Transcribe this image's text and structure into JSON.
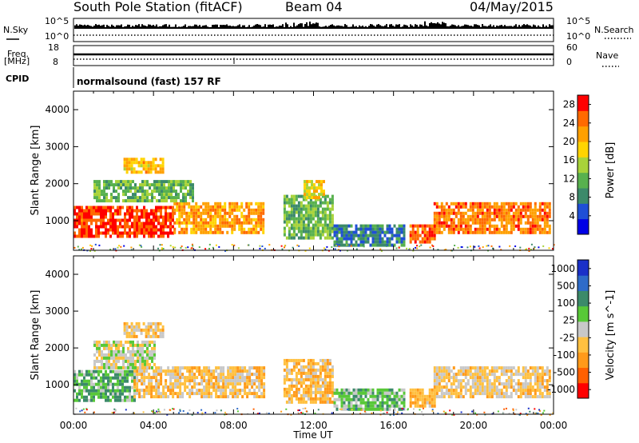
{
  "header": {
    "station": "South Pole Station (fitACF)",
    "beam": "Beam 04",
    "date": "04/May/2015"
  },
  "strip_labels": {
    "nsky": "N.Sky",
    "nsky_ticks": [
      "10^5",
      "10^0"
    ],
    "nsearch": "N.Search",
    "nsearch_ticks": [
      "10^5",
      "10^0"
    ],
    "freq": "Freq.",
    "freq_unit": "[MHz]",
    "freq_ticks": [
      "18",
      "8"
    ],
    "nave": "Nave",
    "nave_ticks": [
      "60",
      "0"
    ],
    "cpid": "CPID",
    "cpid_value": "normalsound (fast) 157 RF"
  },
  "colors": {
    "power_scale": [
      "#0000e6",
      "#1f4fd6",
      "#3c8a6a",
      "#58b14e",
      "#a8d33a",
      "#ffd400",
      "#ffa000",
      "#ff6a00",
      "#ff0000"
    ],
    "velocity_scale": [
      "#ff0000",
      "#ff6000",
      "#ff9a1a",
      "#ffc040",
      "#c8c8c8",
      "#58c838",
      "#3c8a6a",
      "#2e6bc8",
      "#1a30c8"
    ]
  },
  "chart_data": [
    {
      "type": "heatmap",
      "panel": "power",
      "ylabel": "Slant Range [km]",
      "yticks": [
        "1000",
        "2000",
        "3000",
        "4000"
      ],
      "ylim": [
        200,
        4500
      ],
      "xlim": [
        "00:00",
        "24:00"
      ],
      "colorbar": {
        "label": "Power [dB]",
        "ticks": [
          "4",
          "8",
          "12",
          "16",
          "20",
          "24",
          "28"
        ],
        "range": [
          0,
          30
        ]
      },
      "regions": [
        {
          "t0": 0.0,
          "t1": 5.0,
          "r0": 600,
          "r1": 1400,
          "value": 27
        },
        {
          "t0": 5.0,
          "t1": 9.5,
          "r0": 700,
          "r1": 1500,
          "value": 22
        },
        {
          "t0": 1.0,
          "t1": 6.0,
          "r0": 1500,
          "r1": 2100,
          "value": 12
        },
        {
          "t0": 2.5,
          "t1": 4.5,
          "r0": 2300,
          "r1": 2700,
          "value": 20
        },
        {
          "t0": 10.5,
          "t1": 13.0,
          "r0": 500,
          "r1": 1700,
          "value": 12
        },
        {
          "t0": 11.5,
          "t1": 12.5,
          "r0": 1600,
          "r1": 2100,
          "value": 18
        },
        {
          "t0": 13.0,
          "t1": 16.5,
          "r0": 350,
          "r1": 900,
          "value": 8
        },
        {
          "t0": 16.8,
          "t1": 18.0,
          "r0": 450,
          "r1": 900,
          "value": 26
        },
        {
          "t0": 18.0,
          "t1": 23.8,
          "r0": 700,
          "r1": 1500,
          "value": 24
        }
      ]
    },
    {
      "type": "heatmap",
      "panel": "velocity",
      "ylabel": "Slant Range [km]",
      "yticks": [
        "1000",
        "2000",
        "3000",
        "4000"
      ],
      "ylim": [
        200,
        4500
      ],
      "xlabel": "Time UT",
      "xticks": [
        "00:00",
        "04:00",
        "08:00",
        "12:00",
        "16:00",
        "20:00",
        "00:00"
      ],
      "colorbar": {
        "label": "Velocity [m s^-1]",
        "ticks": [
          "1000",
          "500",
          "100",
          "25",
          "-25",
          "-100",
          "-500",
          "-1000"
        ],
        "range": [
          -1000,
          1000
        ]
      },
      "regions": [
        {
          "t0": 0.0,
          "t1": 3.0,
          "r0": 600,
          "r1": 1400,
          "value": 300
        },
        {
          "t0": 3.0,
          "t1": 9.5,
          "r0": 700,
          "r1": 1500,
          "value": -200
        },
        {
          "t0": 1.0,
          "t1": 4.0,
          "r0": 1500,
          "r1": 2200,
          "value": 0
        },
        {
          "t0": 2.5,
          "t1": 4.5,
          "r0": 2300,
          "r1": 2700,
          "value": -150
        },
        {
          "t0": 10.5,
          "t1": 13.0,
          "r0": 500,
          "r1": 1700,
          "value": -250
        },
        {
          "t0": 13.0,
          "t1": 16.5,
          "r0": 350,
          "r1": 900,
          "value": 200
        },
        {
          "t0": 16.8,
          "t1": 18.0,
          "r0": 450,
          "r1": 900,
          "value": -300
        },
        {
          "t0": 18.0,
          "t1": 23.8,
          "r0": 700,
          "r1": 1500,
          "value": -150
        }
      ]
    }
  ]
}
